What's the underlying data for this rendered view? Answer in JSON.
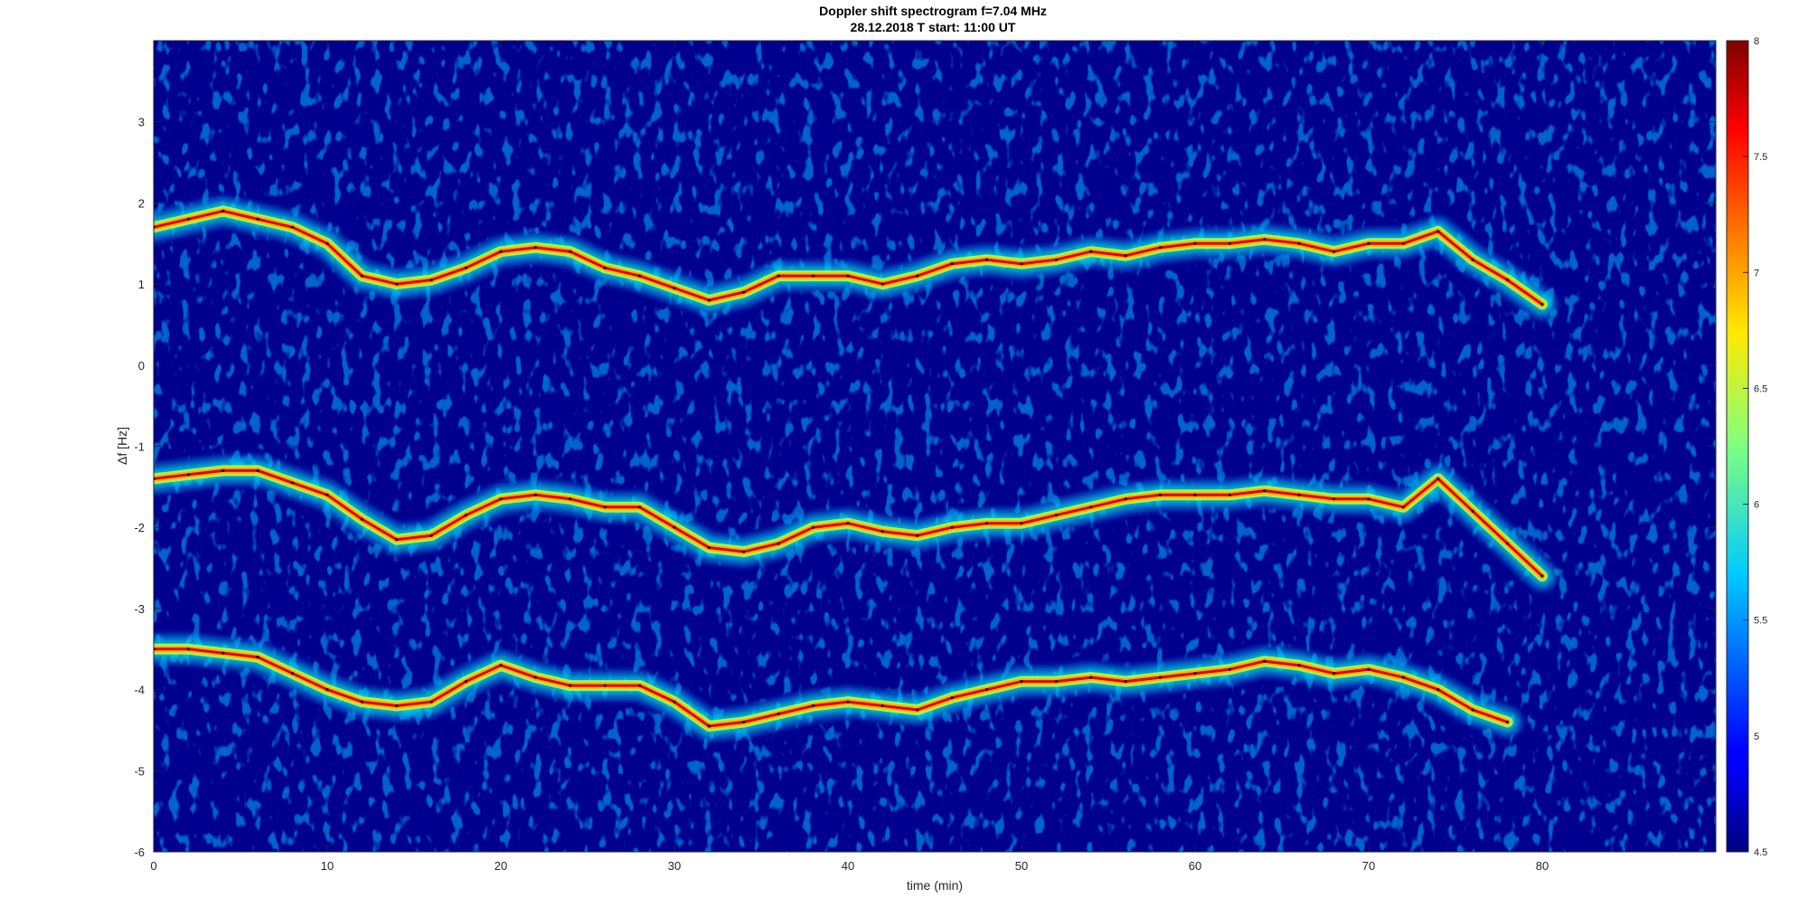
{
  "chart_data": {
    "type": "heatmap",
    "title": "Doppler shift spectrogram f=7.04 MHz",
    "subtitle": "28.12.2018   T start: 11:00 UT",
    "xlabel": "time (min)",
    "ylabel": "Δf [Hz]",
    "xlim": [
      0,
      90
    ],
    "ylim": [
      -6,
      4
    ],
    "xticks": [
      0,
      10,
      20,
      30,
      40,
      50,
      60,
      70,
      80
    ],
    "yticks": [
      -6,
      -5,
      -4,
      -3,
      -2,
      -1,
      0,
      1,
      2,
      3
    ],
    "colorbar": {
      "range": [
        4.5,
        8
      ],
      "ticks": [
        4.5,
        5,
        5.5,
        6,
        6.5,
        7,
        7.5,
        8
      ],
      "colormap": "jet"
    },
    "grid": false,
    "traces": [
      {
        "name": "",
        "x": [
          0,
          2,
          4,
          6,
          8,
          10,
          12,
          14,
          16,
          18,
          20,
          22,
          24,
          26,
          28,
          30,
          32,
          34,
          36,
          38,
          40,
          42,
          44,
          46,
          48,
          50,
          52,
          54,
          56,
          58,
          60,
          62,
          64,
          66,
          68,
          70,
          72,
          74,
          76,
          78,
          80
        ],
        "y": [
          1.7,
          1.8,
          1.9,
          1.8,
          1.7,
          1.5,
          1.1,
          1.0,
          1.05,
          1.2,
          1.4,
          1.45,
          1.4,
          1.2,
          1.1,
          0.95,
          0.8,
          0.9,
          1.1,
          1.1,
          1.1,
          1.0,
          1.1,
          1.25,
          1.3,
          1.25,
          1.3,
          1.4,
          1.35,
          1.45,
          1.5,
          1.5,
          1.55,
          1.5,
          1.4,
          1.5,
          1.5,
          1.65,
          1.3,
          1.05,
          0.75
        ]
      },
      {
        "name": "",
        "x": [
          0,
          2,
          4,
          6,
          8,
          10,
          12,
          14,
          16,
          18,
          20,
          22,
          24,
          26,
          28,
          30,
          32,
          34,
          36,
          38,
          40,
          42,
          44,
          46,
          48,
          50,
          52,
          54,
          56,
          58,
          60,
          62,
          64,
          66,
          68,
          70,
          72,
          74,
          76,
          78,
          80
        ],
        "y": [
          -1.4,
          -1.35,
          -1.3,
          -1.3,
          -1.45,
          -1.6,
          -1.9,
          -2.15,
          -2.1,
          -1.85,
          -1.65,
          -1.6,
          -1.65,
          -1.75,
          -1.75,
          -2.0,
          -2.25,
          -2.3,
          -2.2,
          -2.0,
          -1.95,
          -2.05,
          -2.1,
          -2.0,
          -1.95,
          -1.95,
          -1.85,
          -1.75,
          -1.65,
          -1.6,
          -1.6,
          -1.6,
          -1.55,
          -1.6,
          -1.65,
          -1.65,
          -1.75,
          -1.4,
          -1.8,
          -2.2,
          -2.6
        ]
      },
      {
        "name": "",
        "x": [
          0,
          2,
          4,
          6,
          8,
          10,
          12,
          14,
          16,
          18,
          20,
          22,
          24,
          26,
          28,
          30,
          32,
          34,
          36,
          38,
          40,
          42,
          44,
          46,
          48,
          50,
          52,
          54,
          56,
          58,
          60,
          62,
          64,
          66,
          68,
          70,
          72,
          74,
          76,
          78
        ],
        "y": [
          -3.5,
          -3.5,
          -3.55,
          -3.6,
          -3.8,
          -4.0,
          -4.15,
          -4.2,
          -4.15,
          -3.9,
          -3.7,
          -3.85,
          -3.95,
          -3.95,
          -3.95,
          -4.15,
          -4.45,
          -4.4,
          -4.3,
          -4.2,
          -4.15,
          -4.2,
          -4.25,
          -4.1,
          -4.0,
          -3.9,
          -3.9,
          -3.85,
          -3.9,
          -3.85,
          -3.8,
          -3.75,
          -3.65,
          -3.7,
          -3.8,
          -3.75,
          -3.85,
          -4.0,
          -4.25,
          -4.4
        ]
      }
    ]
  }
}
